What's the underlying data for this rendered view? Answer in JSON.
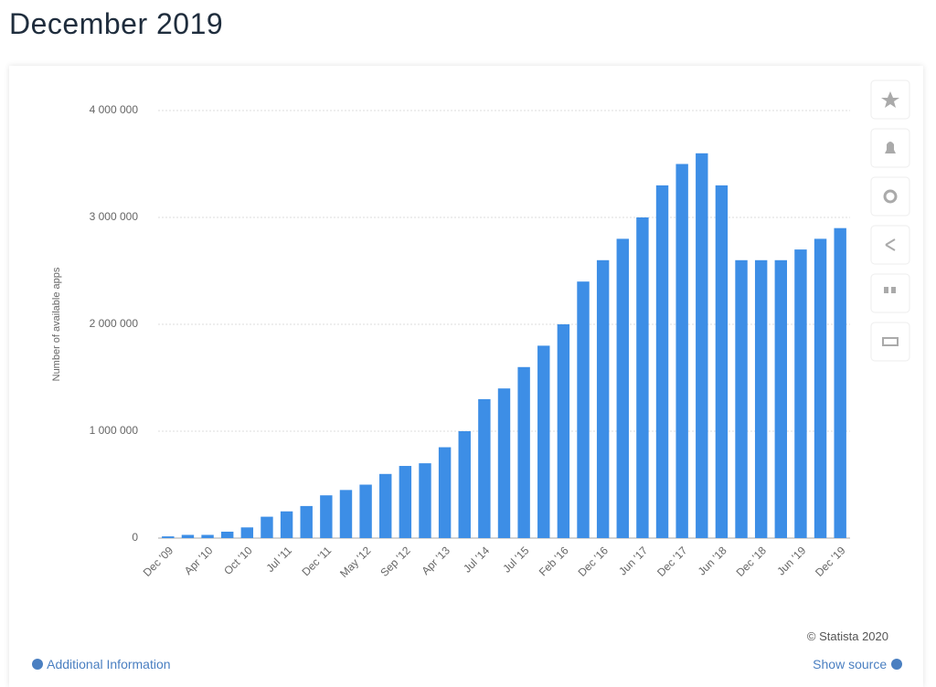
{
  "page_title": "December 2019",
  "chart_data": {
    "type": "bar",
    "y_label": "Number of available apps",
    "categories": [
      "Dec '09",
      null,
      "Apr '10",
      null,
      "Oct '10",
      null,
      "Jul '11",
      null,
      "Dec '11",
      null,
      "May '12",
      null,
      "Sep '12",
      null,
      "Apr '13",
      null,
      "Jul '14",
      null,
      "Jul '15",
      null,
      "Feb '16",
      null,
      "Dec '16",
      null,
      "Jun '17",
      null,
      "Dec '17",
      null,
      "Jun '18",
      null,
      "Dec '18",
      null,
      "Jun '19",
      null,
      "Dec '19"
    ],
    "values": [
      16000,
      30000,
      30000,
      60000,
      100000,
      200000,
      250000,
      300000,
      400000,
      450000,
      500000,
      600000,
      675000,
      700000,
      850000,
      1000000,
      1300000,
      1400000,
      1600000,
      1800000,
      2000000,
      2400000,
      2600000,
      2800000,
      3000000,
      3300000,
      3500000,
      3600000,
      3300000,
      2600000,
      2600000,
      2600000,
      2700000,
      2800000,
      2900000
    ],
    "color": "#3d8ee6",
    "ylim": [
      0,
      4000000
    ],
    "yticks": [
      0,
      {
        "value": 1000000,
        "label": "1 000 000"
      },
      {
        "value": 2000000,
        "label": "2 000 000"
      },
      {
        "value": 3000000,
        "label": "3 000 000"
      },
      {
        "value": 4000000,
        "label": "4 000 000"
      }
    ],
    "grid": true
  },
  "credit": "© Statista 2020",
  "footer": {
    "left": "Additional Information",
    "right": "Show source"
  }
}
